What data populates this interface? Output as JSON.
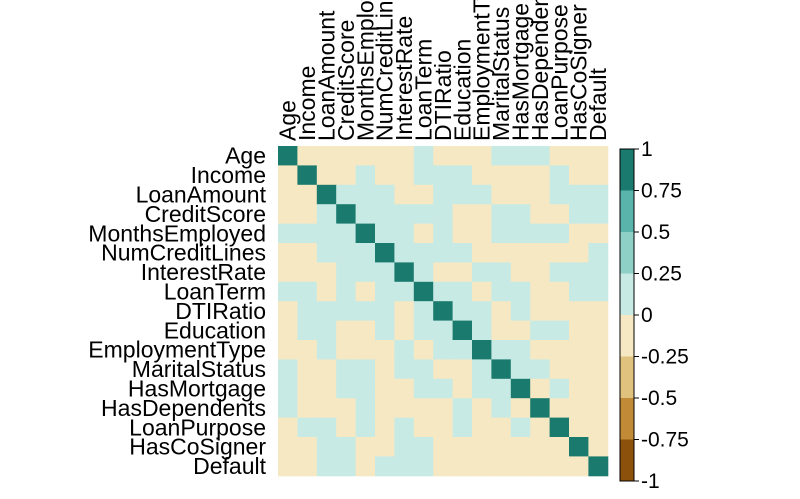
{
  "chart_data": {
    "type": "heatmap",
    "title": "",
    "variables": [
      "Age",
      "Income",
      "LoanAmount",
      "CreditScore",
      "MonthsEmployed",
      "NumCreditLines",
      "InterestRate",
      "LoanTerm",
      "DTIRatio",
      "Education",
      "EmploymentType",
      "MaritalStatus",
      "HasMortgage",
      "HasDependents",
      "LoanPurpose",
      "HasCoSigner",
      "Default"
    ],
    "matrix": [
      [
        1,
        -0.1,
        -0.1,
        -0.1,
        -0.1,
        -0.1,
        -0.1,
        0.05,
        -0.1,
        -0.1,
        -0.1,
        0.05,
        0.05,
        0.05,
        -0.1,
        -0.1,
        -0.1
      ],
      [
        -0.1,
        1,
        -0.1,
        -0.1,
        0.05,
        -0.1,
        -0.1,
        0.05,
        0.05,
        0.05,
        -0.1,
        -0.1,
        -0.1,
        -0.1,
        0.05,
        -0.1,
        -0.1
      ],
      [
        -0.1,
        -0.1,
        1,
        0.05,
        0.05,
        0.05,
        -0.1,
        -0.1,
        0.05,
        0.05,
        0.05,
        -0.1,
        -0.1,
        -0.1,
        0.05,
        0.05,
        0.05
      ],
      [
        -0.1,
        -0.1,
        0.05,
        1,
        0.05,
        0.05,
        0.05,
        0.05,
        0.05,
        -0.1,
        -0.1,
        0.05,
        0.05,
        -0.1,
        -0.1,
        0.05,
        0.05
      ],
      [
        0.05,
        0.05,
        0.05,
        0.05,
        1,
        0.05,
        0.05,
        -0.1,
        0.05,
        -0.1,
        -0.1,
        0.05,
        0.05,
        0.05,
        0.05,
        -0.1,
        -0.1
      ],
      [
        -0.1,
        -0.1,
        0.05,
        0.05,
        0.05,
        1,
        0.05,
        0.05,
        0.05,
        0.05,
        -0.1,
        -0.1,
        -0.1,
        -0.1,
        -0.1,
        -0.1,
        0.05
      ],
      [
        -0.1,
        -0.1,
        -0.1,
        0.05,
        0.05,
        0.05,
        1,
        0.05,
        -0.1,
        -0.1,
        0.05,
        0.05,
        -0.1,
        -0.1,
        0.05,
        0.05,
        0.05
      ],
      [
        0.05,
        0.05,
        -0.1,
        0.05,
        -0.1,
        0.05,
        0.05,
        1,
        0.05,
        0.05,
        -0.1,
        0.05,
        0.05,
        -0.1,
        -0.1,
        0.05,
        0.05
      ],
      [
        -0.1,
        0.05,
        0.05,
        0.05,
        0.05,
        0.05,
        -0.1,
        0.05,
        1,
        0.05,
        0.05,
        -0.1,
        0.05,
        -0.1,
        -0.1,
        -0.1,
        -0.1
      ],
      [
        -0.1,
        0.05,
        0.05,
        -0.1,
        -0.1,
        0.05,
        -0.1,
        0.05,
        0.05,
        1,
        0.05,
        -0.1,
        -0.1,
        0.05,
        0.05,
        -0.1,
        -0.1
      ],
      [
        -0.1,
        -0.1,
        0.05,
        -0.1,
        -0.1,
        -0.1,
        0.05,
        -0.1,
        0.05,
        0.05,
        1,
        0.05,
        0.05,
        -0.1,
        -0.1,
        -0.1,
        -0.1
      ],
      [
        0.05,
        -0.1,
        -0.1,
        0.05,
        0.05,
        -0.1,
        0.05,
        0.05,
        -0.1,
        -0.1,
        0.05,
        1,
        0.05,
        0.05,
        -0.1,
        -0.1,
        -0.1
      ],
      [
        0.05,
        -0.1,
        -0.1,
        0.05,
        0.05,
        -0.1,
        -0.1,
        0.05,
        0.05,
        -0.1,
        0.05,
        0.05,
        1,
        -0.1,
        0.05,
        -0.1,
        -0.1
      ],
      [
        0.05,
        -0.1,
        -0.1,
        -0.1,
        0.05,
        -0.1,
        -0.1,
        -0.1,
        -0.1,
        0.05,
        -0.1,
        0.05,
        -0.1,
        1,
        -0.1,
        -0.1,
        -0.1
      ],
      [
        -0.1,
        0.05,
        0.05,
        -0.1,
        0.05,
        -0.1,
        0.05,
        -0.1,
        -0.1,
        0.05,
        -0.1,
        -0.1,
        0.05,
        -0.1,
        1,
        -0.1,
        -0.1
      ],
      [
        -0.1,
        -0.1,
        0.05,
        0.05,
        -0.1,
        -0.1,
        0.05,
        0.05,
        -0.1,
        -0.1,
        -0.1,
        -0.1,
        -0.1,
        -0.1,
        -0.1,
        1,
        -0.1
      ],
      [
        -0.1,
        -0.1,
        0.05,
        0.05,
        -0.1,
        0.05,
        0.05,
        0.05,
        -0.1,
        -0.1,
        -0.1,
        -0.1,
        -0.1,
        -0.1,
        -0.1,
        -0.1,
        1
      ]
    ],
    "color_scale": {
      "min": -1,
      "max": 1,
      "ticks": [
        "1",
        "0.75",
        "0.5",
        "0.25",
        "0",
        "-0.25",
        "-0.5",
        "-0.75",
        "-1"
      ],
      "bands": [
        {
          "from": 0.75,
          "to": 1,
          "color": "#1a7a6d"
        },
        {
          "from": 0.5,
          "to": 0.75,
          "color": "#5ab4ac"
        },
        {
          "from": 0.25,
          "to": 0.5,
          "color": "#8fd0c6"
        },
        {
          "from": 0,
          "to": 0.25,
          "color": "#c7eae5"
        },
        {
          "from": -0.25,
          "to": 0,
          "color": "#f6e8c3"
        },
        {
          "from": -0.5,
          "to": -0.25,
          "color": "#dfc27d"
        },
        {
          "from": -0.75,
          "to": -0.5,
          "color": "#c18a36"
        },
        {
          "from": -1,
          "to": -0.75,
          "color": "#8c510a"
        }
      ]
    },
    "legend_position": "right",
    "grid": false
  }
}
